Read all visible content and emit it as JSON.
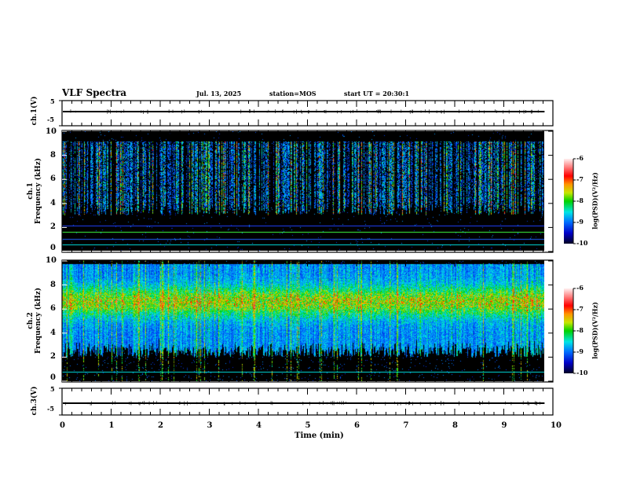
{
  "header": {
    "title": "VLF Spectra",
    "date": "Jul. 13, 2025",
    "station": "station=MOS",
    "start": "start UT =  20:30:1"
  },
  "chart_data": [
    {
      "type": "line",
      "name": "ch1-waveform",
      "ylabel": "ch.1(V)",
      "ylim": [
        -5,
        5
      ],
      "yticks": [
        "5",
        "-5"
      ],
      "xlim": [
        0,
        10
      ],
      "baseline": 0
    },
    {
      "type": "heatmap",
      "name": "ch1-spectrogram",
      "ylabel": "ch.1\nFrequency (kHz)",
      "ylabel_top": "ch.1",
      "ylabel_bottom": "Frequency (kHz)",
      "ylim": [
        0,
        10
      ],
      "yticks": [
        "0",
        "2",
        "4",
        "6",
        "8",
        "10"
      ],
      "xlim": [
        0,
        10
      ],
      "data_end_min": 9.83,
      "dominant_band_kHz": [
        3,
        9
      ],
      "narrowband_lines_kHz": [
        0.5,
        1.5,
        2.1
      ]
    },
    {
      "type": "heatmap",
      "name": "ch2-spectrogram",
      "ylabel_top": "ch.2",
      "ylabel_bottom": "Frequency (kHz)",
      "ylim": [
        0,
        10
      ],
      "yticks": [
        "0",
        "2",
        "4",
        "6",
        "8",
        "10"
      ],
      "xlim": [
        0,
        10
      ],
      "data_end_min": 9.83,
      "peak_band_kHz": [
        5.5,
        7.5
      ],
      "narrowband_lines_kHz": [
        0.8
      ]
    },
    {
      "type": "line",
      "name": "ch3-waveform",
      "ylabel": "ch.3(V)",
      "ylim": [
        -5,
        5
      ],
      "yticks": [
        "5",
        "-5"
      ],
      "xlim": [
        0,
        10
      ],
      "baseline": 0
    },
    {
      "type": "colorbar",
      "label": "log(PSD)(V²/Hz)",
      "range": [
        -10,
        -6
      ],
      "ticks": [
        "-6",
        "-7",
        "-8",
        "-9",
        "-10"
      ]
    }
  ],
  "xaxis": {
    "label": "Time (min)",
    "ticks": [
      "0",
      "1",
      "2",
      "3",
      "4",
      "5",
      "6",
      "7",
      "8",
      "9",
      "10"
    ]
  }
}
